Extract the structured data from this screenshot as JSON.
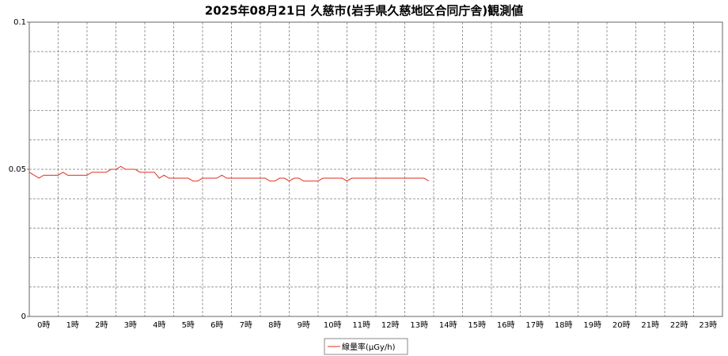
{
  "chart_data": {
    "type": "line",
    "title": "2025年08月21日 久慈市(岩手県久慈地区合同庁舎)観測値",
    "x": [
      0,
      10,
      20,
      30,
      40,
      50,
      60,
      70,
      80,
      90,
      100,
      110,
      120,
      130,
      140,
      150,
      160,
      170,
      180,
      190,
      200,
      210,
      220,
      230,
      240,
      250,
      260,
      270,
      280,
      290,
      300,
      310,
      320,
      330,
      340,
      350,
      360,
      370,
      380,
      390,
      400,
      410,
      420,
      430,
      440,
      450,
      460,
      470,
      480,
      490,
      500,
      510,
      520,
      530,
      540,
      550,
      560,
      570,
      580,
      590,
      600,
      610,
      620,
      630,
      640,
      650,
      660,
      670,
      680,
      690,
      700,
      710,
      720,
      730,
      740,
      750,
      760,
      770,
      780,
      790,
      800,
      810,
      820,
      830
    ],
    "series": [
      {
        "name": "線量率(μGy/h)",
        "color": "#e03020",
        "values": [
          0.049,
          0.048,
          0.047,
          0.048,
          0.048,
          0.048,
          0.048,
          0.049,
          0.048,
          0.048,
          0.048,
          0.048,
          0.048,
          0.049,
          0.049,
          0.049,
          0.049,
          0.05,
          0.05,
          0.051,
          0.05,
          0.05,
          0.05,
          0.049,
          0.049,
          0.049,
          0.049,
          0.047,
          0.048,
          0.047,
          0.047,
          0.047,
          0.047,
          0.047,
          0.046,
          0.046,
          0.047,
          0.047,
          0.047,
          0.047,
          0.048,
          0.047,
          0.047,
          0.047,
          0.047,
          0.047,
          0.047,
          0.047,
          0.047,
          0.047,
          0.046,
          0.046,
          0.047,
          0.047,
          0.046,
          0.047,
          0.047,
          0.046,
          0.046,
          0.046,
          0.046,
          0.047,
          0.047,
          0.047,
          0.047,
          0.047,
          0.046,
          0.047,
          0.047,
          0.047,
          0.047,
          0.047,
          0.047,
          0.047,
          0.047,
          0.047,
          0.047,
          0.047,
          0.047,
          0.047,
          0.047,
          0.047,
          0.047,
          0.046
        ]
      }
    ],
    "xlim": [
      0,
      1440
    ],
    "xticks": [
      {
        "value": 30,
        "label": "0時"
      },
      {
        "value": 90,
        "label": "1時"
      },
      {
        "value": 150,
        "label": "2時"
      },
      {
        "value": 210,
        "label": "3時"
      },
      {
        "value": 270,
        "label": "4時"
      },
      {
        "value": 330,
        "label": "5時"
      },
      {
        "value": 390,
        "label": "6時"
      },
      {
        "value": 450,
        "label": "7時"
      },
      {
        "value": 510,
        "label": "8時"
      },
      {
        "value": 570,
        "label": "9時"
      },
      {
        "value": 630,
        "label": "10時"
      },
      {
        "value": 690,
        "label": "11時"
      },
      {
        "value": 750,
        "label": "12時"
      },
      {
        "value": 810,
        "label": "13時"
      },
      {
        "value": 870,
        "label": "14時"
      },
      {
        "value": 930,
        "label": "15時"
      },
      {
        "value": 990,
        "label": "16時"
      },
      {
        "value": 1050,
        "label": "17時"
      },
      {
        "value": 1110,
        "label": "18時"
      },
      {
        "value": 1170,
        "label": "19時"
      },
      {
        "value": 1230,
        "label": "20時"
      },
      {
        "value": 1290,
        "label": "21時"
      },
      {
        "value": 1350,
        "label": "22時"
      },
      {
        "value": 1410,
        "label": "23時"
      }
    ],
    "xgrid": [
      60,
      120,
      180,
      240,
      300,
      360,
      420,
      480,
      540,
      600,
      660,
      720,
      780,
      840,
      900,
      960,
      1020,
      1080,
      1140,
      1200,
      1260,
      1320,
      1380
    ],
    "ylim": [
      0,
      0.1
    ],
    "yticks": [
      0,
      0.05,
      0.1
    ],
    "ygrid": [
      0.01,
      0.02,
      0.03,
      0.04,
      0.05,
      0.06,
      0.07,
      0.08,
      0.09
    ],
    "grid": true,
    "legend": "bottom"
  }
}
